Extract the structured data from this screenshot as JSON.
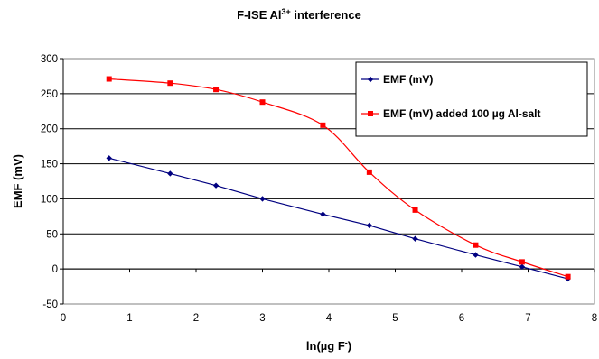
{
  "chart_data": {
    "type": "line",
    "title": {
      "prefix": "F-ISE Al",
      "superscript": "3+",
      "suffix": " interference"
    },
    "xlabel": {
      "prefix": "ln(µg F",
      "superscript": "-",
      "suffix": ")"
    },
    "ylabel": "EMF (mV)",
    "xlim": [
      0,
      8
    ],
    "ylim": [
      -50,
      300
    ],
    "xticks": [
      "0",
      "1",
      "2",
      "3",
      "4",
      "5",
      "6",
      "7",
      "8"
    ],
    "yticks": [
      "-50",
      "0",
      "50",
      "100",
      "150",
      "200",
      "250",
      "300"
    ],
    "grid": "horizontal",
    "legend_position": "top-right",
    "series": [
      {
        "name": "EMF (mV)",
        "color": "#000080",
        "marker": "diamond",
        "points": [
          [
            0.69,
            158
          ],
          [
            1.61,
            136
          ],
          [
            2.3,
            119
          ],
          [
            3.0,
            100
          ],
          [
            3.91,
            78
          ],
          [
            4.61,
            62
          ],
          [
            5.3,
            43
          ],
          [
            6.21,
            20
          ],
          [
            6.91,
            3
          ],
          [
            7.6,
            -14
          ]
        ]
      },
      {
        "name": "EMF (mV) added 100 µg Al-salt",
        "color": "#ff0000",
        "marker": "square",
        "points": [
          [
            0.69,
            271
          ],
          [
            1.61,
            265
          ],
          [
            2.3,
            256
          ],
          [
            3.0,
            238
          ],
          [
            3.91,
            205
          ],
          [
            4.61,
            138
          ],
          [
            5.3,
            84
          ],
          [
            6.21,
            34
          ],
          [
            6.91,
            10
          ],
          [
            7.6,
            -11
          ]
        ]
      }
    ]
  }
}
